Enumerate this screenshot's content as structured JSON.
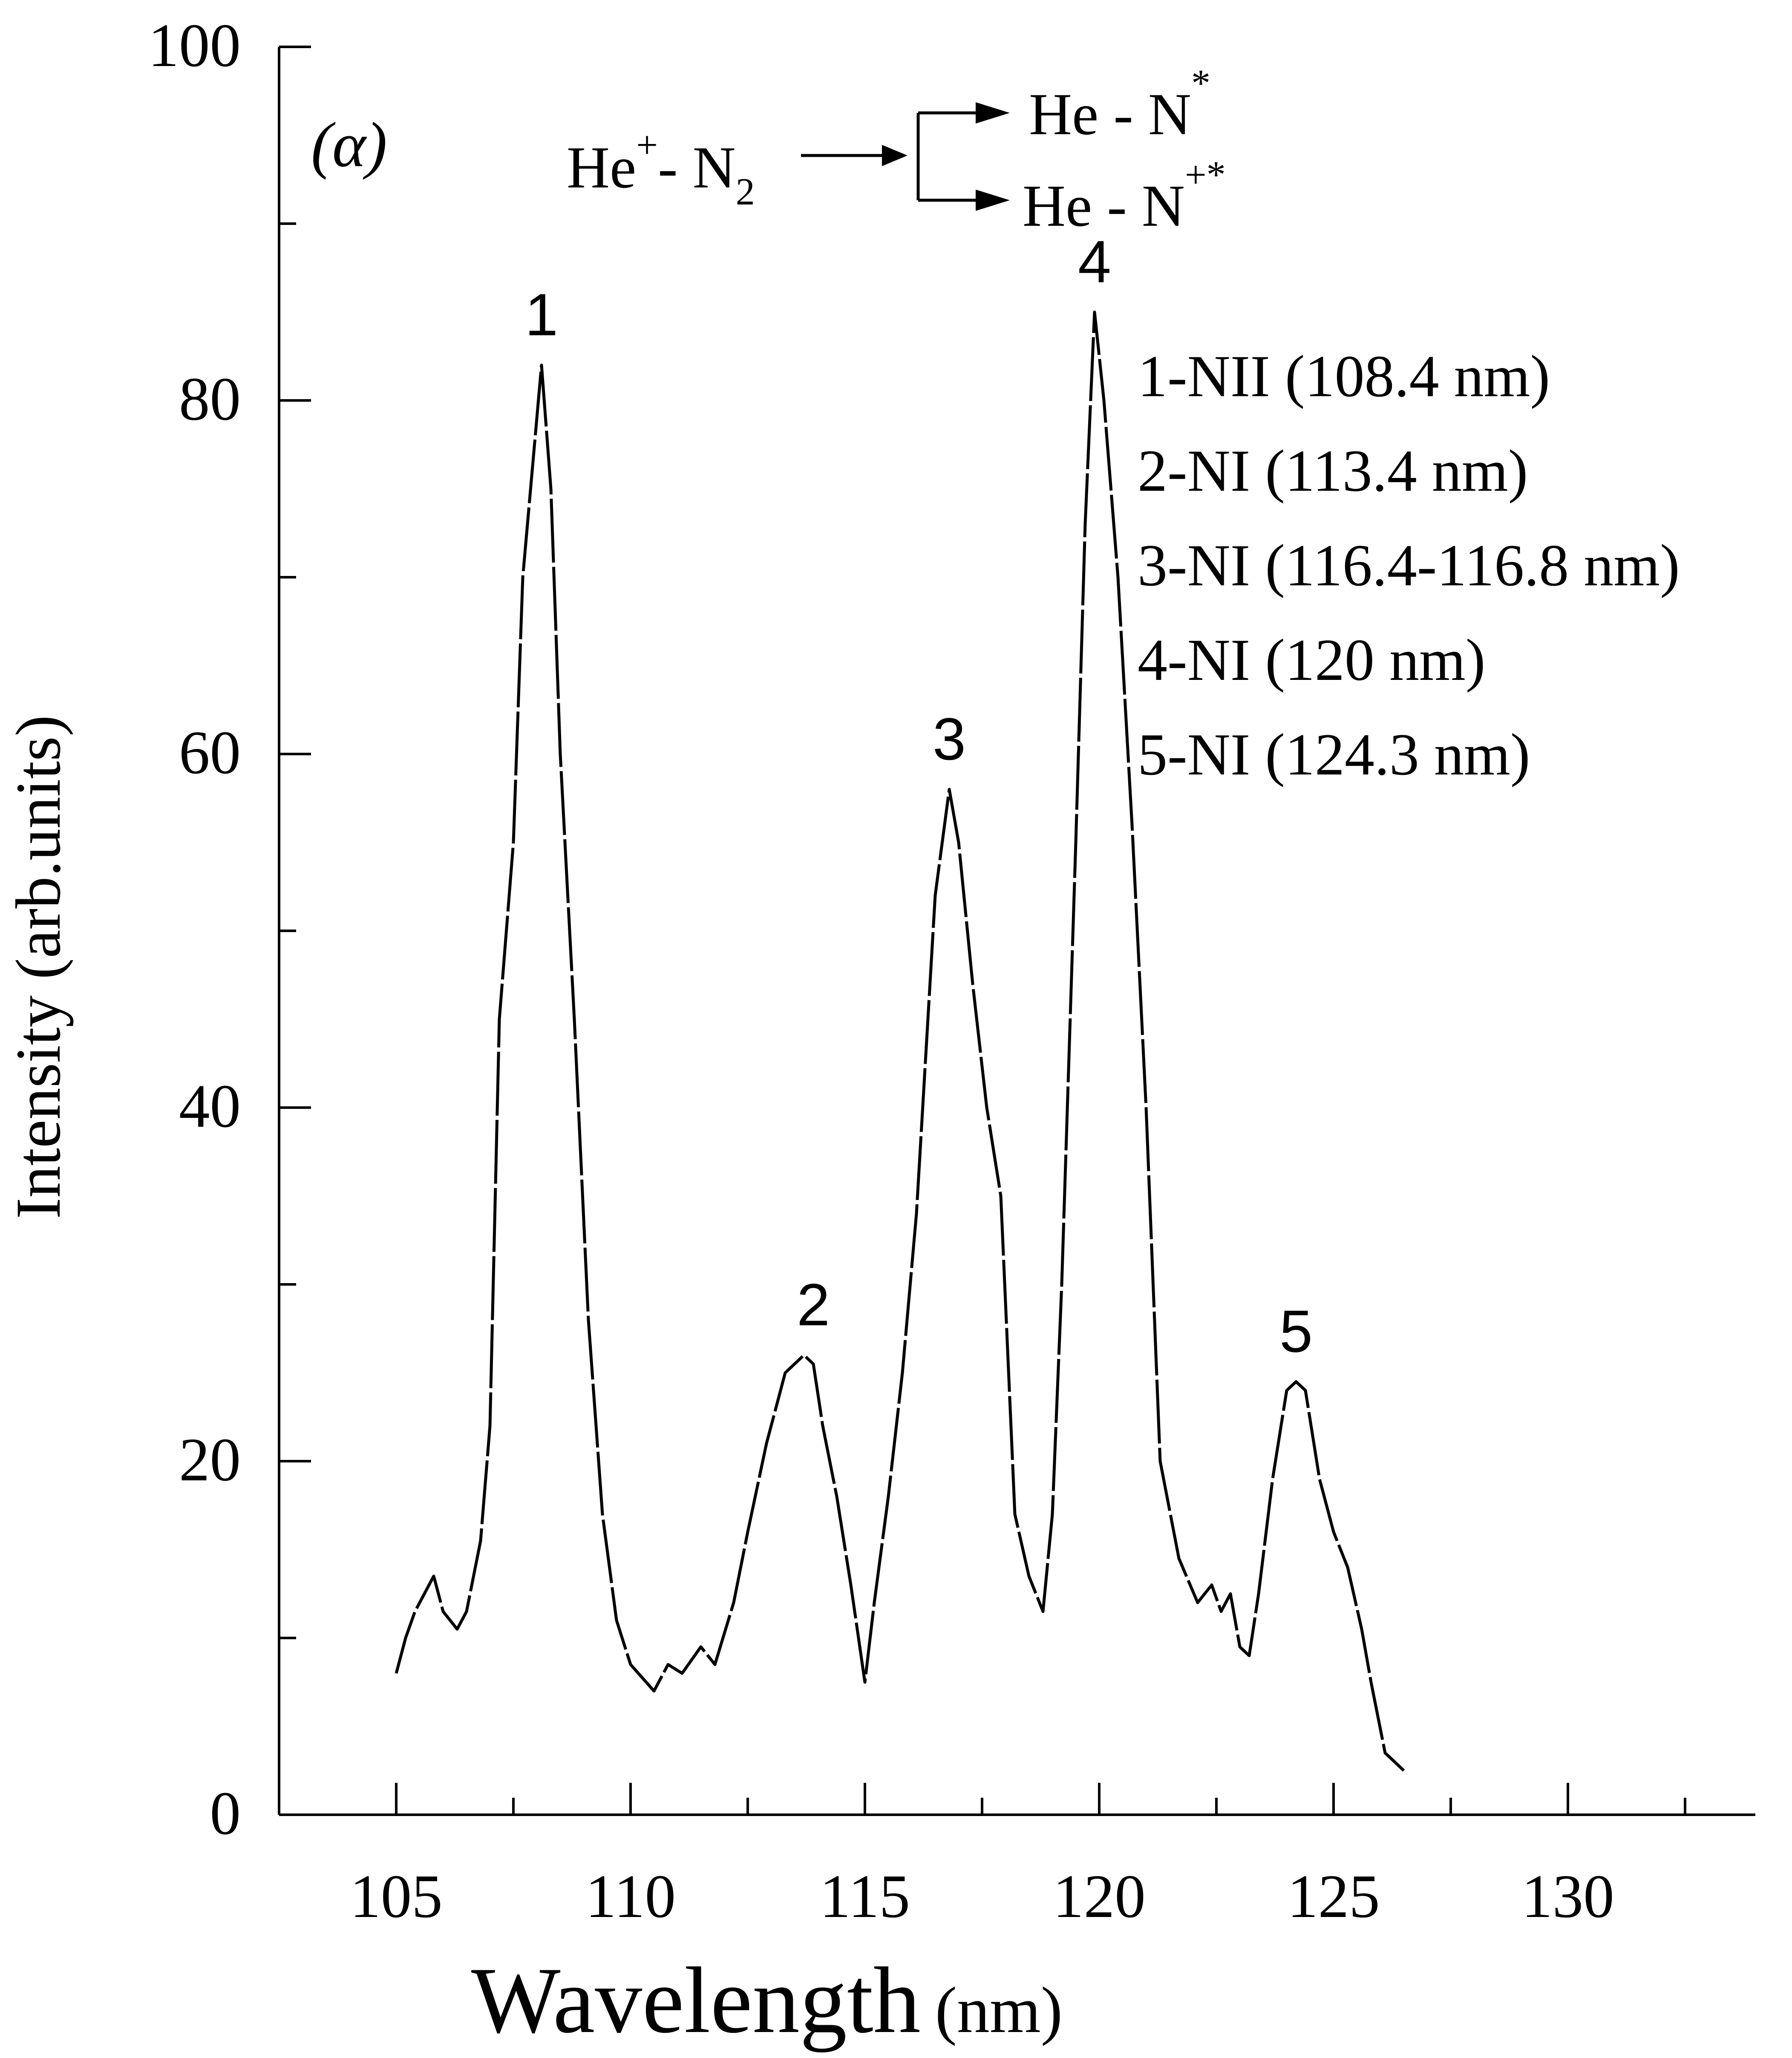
{
  "chart_data": {
    "type": "line",
    "panel_label": "(α)",
    "xlabel": "Wavelength",
    "xlabel_unit": "(nm)",
    "ylabel": "Intensity (arb.units)",
    "xlim": [
      102.5,
      134.0
    ],
    "ylim": [
      0,
      100
    ],
    "x_ticks": [
      105,
      110,
      115,
      120,
      125,
      130
    ],
    "y_ticks": [
      0,
      20,
      40,
      60,
      80,
      100
    ],
    "grid": false,
    "series": [
      {
        "x": [
          105.0,
          105.2,
          105.4,
          105.6,
          105.8,
          106.0,
          106.3,
          106.5,
          106.8,
          107.0,
          107.2,
          107.5,
          107.7,
          107.9,
          108.1,
          108.3,
          108.5,
          108.8,
          109.1,
          109.4,
          109.7,
          110.0,
          110.5,
          110.8,
          111.1,
          111.5,
          111.8,
          112.2,
          112.5,
          112.9,
          113.3,
          113.7,
          113.9,
          114.1,
          114.4,
          114.7,
          115.0,
          115.2,
          115.5,
          115.8,
          116.1,
          116.5,
          116.8,
          117.0,
          117.3,
          117.6,
          117.9,
          118.2,
          118.5,
          118.8,
          119.0,
          119.2,
          119.5,
          119.7,
          119.9,
          120.1,
          120.4,
          120.7,
          121.0,
          121.3,
          121.7,
          122.1,
          122.4,
          122.6,
          122.8,
          123.0,
          123.2,
          123.4,
          123.7,
          124.0,
          124.2,
          124.4,
          124.7,
          125.0,
          125.3,
          125.6,
          125.8,
          126.1,
          126.5
        ],
        "values": [
          8.0,
          10.0,
          11.5,
          12.5,
          13.5,
          11.5,
          10.5,
          11.5,
          15.5,
          22.0,
          45.0,
          55.0,
          70.0,
          76.0,
          82.0,
          75.0,
          60.0,
          45.0,
          28.0,
          17.0,
          11.0,
          8.5,
          7.0,
          8.5,
          8.0,
          9.5,
          8.5,
          12.0,
          16.0,
          21.0,
          25.0,
          26.0,
          25.5,
          22.0,
          18.0,
          13.0,
          7.5,
          12.0,
          18.0,
          25.0,
          34.0,
          52.0,
          58.0,
          55.0,
          47.0,
          40.0,
          35.0,
          17.0,
          13.5,
          11.5,
          17.0,
          30.0,
          55.0,
          73.0,
          85.0,
          80.0,
          70.0,
          56.0,
          40.0,
          20.0,
          14.5,
          12.0,
          13.0,
          11.5,
          12.5,
          9.5,
          9.0,
          12.5,
          19.0,
          24.0,
          24.5,
          24.0,
          19.0,
          16.0,
          14.0,
          10.5,
          7.5,
          3.5,
          2.5
        ]
      }
    ],
    "peak_labels": [
      {
        "text": "1",
        "x": 108.1,
        "y": 82.0
      },
      {
        "text": "2",
        "x": 113.9,
        "y": 26.0
      },
      {
        "text": "3",
        "x": 116.8,
        "y": 58.0
      },
      {
        "text": "4",
        "x": 119.9,
        "y": 85.0
      },
      {
        "text": "5",
        "x": 124.2,
        "y": 24.5
      }
    ],
    "legend_entries": [
      "1-NII (108.4 nm)",
      "2-NI (113.4 nm)",
      "3-NI (116.4-116.8 nm)",
      "4-NI (120 nm)",
      "5-NI (124.3 nm)"
    ],
    "reaction": {
      "reactant_base": "He",
      "reactant_sup": "+",
      "reactant_rest": "- N",
      "reactant_sub": "2",
      "product1_base": "He - N",
      "product1_sup": "*",
      "product2_base": "He - N",
      "product2_sup": "+*"
    }
  }
}
